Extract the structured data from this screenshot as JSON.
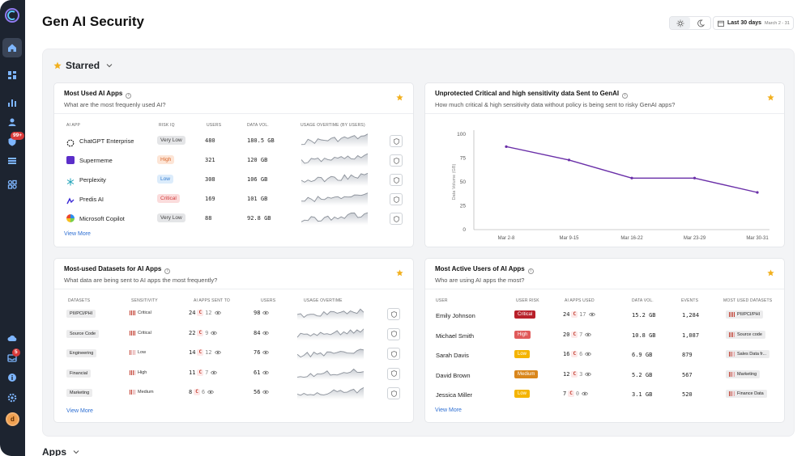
{
  "page": {
    "title": "Gen AI Security"
  },
  "header": {
    "date_range_label": "Last 30 days",
    "date_range_sub": "March 2 - 31"
  },
  "sidebar": {
    "alert_badge": "99+",
    "notif_badge": "5",
    "avatar_initial": "d",
    "items": [
      {
        "icon": "home-icon"
      },
      {
        "icon": "dashboard-icon"
      },
      {
        "icon": "bar-chart-icon"
      },
      {
        "icon": "user-icon"
      },
      {
        "icon": "shield-alert-icon"
      },
      {
        "icon": "list-icon"
      },
      {
        "icon": "integrations-icon"
      },
      {
        "icon": "cloud-icon"
      },
      {
        "icon": "inbox-icon"
      },
      {
        "icon": "info-icon"
      },
      {
        "icon": "settings-icon"
      }
    ]
  },
  "starred": {
    "label": "Starred"
  },
  "apps_section": {
    "label": "Apps"
  },
  "most_used_apps": {
    "title": "Most Used AI Apps",
    "subtitle": "What are the most frequenly used AI?",
    "headers": [
      "AI APP",
      "RISK IQ",
      "USERS",
      "DATA VOL.",
      "USAGE OVERTIME (BY USERS)"
    ],
    "rows": [
      {
        "name": "ChatGPT Enterprise",
        "risk": "Very Low",
        "users": "480",
        "data": "180.5 GB"
      },
      {
        "name": "Supermeme",
        "risk": "High",
        "users": "321",
        "data": "120 GB"
      },
      {
        "name": "Perplexity",
        "risk": "Low",
        "users": "308",
        "data": "106 GB"
      },
      {
        "name": "Predis AI",
        "risk": "Critical",
        "users": "169",
        "data": "101 GB"
      },
      {
        "name": "Microsoft Copilot",
        "risk": "Very Low",
        "users": "88",
        "data": "92.8 GB"
      }
    ],
    "view_more": "View More"
  },
  "unprotected": {
    "title": "Unprotected Critical and high sensitivity data Sent to GenAI",
    "subtitle": "How much critical & high sensitivity data without policy is being sent to risky GenAI apps?",
    "chart_data": {
      "type": "line",
      "categories": [
        "Mar 2-8",
        "Mar 9-15",
        "Mar 16-22",
        "Mar 23-29",
        "Mar 30-31"
      ],
      "values": [
        87,
        73,
        54,
        54,
        39
      ],
      "ylabel": "Data Volume (GB)",
      "yticks": [
        "100",
        "75",
        "50",
        "25",
        "0"
      ],
      "ylim": [
        0,
        100
      ],
      "color": "#6a2fa8"
    }
  },
  "datasets": {
    "title": "Most-used Datasets for AI Apps",
    "subtitle": "What data are being sent to AI apps the most frequently?",
    "headers": [
      "DATASETS",
      "SENSITIVITY",
      "AI APPS SENT TO",
      "USERS",
      "USAGE OVERTIME"
    ],
    "rows": [
      {
        "name": "PII/PCI/PHI",
        "sensitivity": "Critical",
        "apps": "24",
        "crit": "12",
        "users": "98"
      },
      {
        "name": "Source Code",
        "sensitivity": "Critical",
        "apps": "22",
        "crit": "9",
        "users": "84"
      },
      {
        "name": "Engineering",
        "sensitivity": "Low",
        "apps": "14",
        "crit": "12",
        "users": "76"
      },
      {
        "name": "Financial",
        "sensitivity": "High",
        "apps": "11",
        "crit": "7",
        "users": "61"
      },
      {
        "name": "Marketing",
        "sensitivity": "Medium",
        "apps": "8",
        "crit": "6",
        "users": "56"
      }
    ],
    "crit_letter": "C",
    "view_more": "View More"
  },
  "active_users": {
    "title": "Most Active Users of AI Apps",
    "subtitle": "Who are using AI apps the most?",
    "headers": [
      "USER",
      "USER RISK",
      "AI APPS USED",
      "DATA VOL.",
      "EVENTS",
      "MOST USED DATASETS"
    ],
    "rows": [
      {
        "name": "Emily Johnson",
        "risk": "Critical",
        "apps": "24",
        "crit": "17",
        "data": "15.2 GB",
        "events": "1,284",
        "dataset": "PII/PCI/PHI"
      },
      {
        "name": "Michael Smith",
        "risk": "High",
        "apps": "20",
        "crit": "7",
        "data": "10.8 GB",
        "events": "1,087",
        "dataset": "Source code"
      },
      {
        "name": "Sarah Davis",
        "risk": "Low",
        "apps": "16",
        "crit": "6",
        "data": "6.9 GB",
        "events": "879",
        "dataset": "Sales Data fr..."
      },
      {
        "name": "David Brown",
        "risk": "Medium",
        "apps": "12",
        "crit": "3",
        "data": "5.2 GB",
        "events": "567",
        "dataset": "Marketing"
      },
      {
        "name": "Jessica Miller",
        "risk": "Low",
        "apps": "7",
        "crit": "0",
        "data": "3.1 GB",
        "events": "520",
        "dataset": "Finance Data"
      }
    ],
    "crit_letter": "C",
    "view_more": "View More"
  },
  "colors": {
    "risk_very_low_bg": "#e4e5e7",
    "risk_very_low_fg": "#444444",
    "risk_high_bg": "#fde5d6",
    "risk_high_fg": "#d8652b",
    "risk_low_bg": "#dcecfb",
    "risk_low_fg": "#2f7ad0",
    "risk_critical_bg": "#fbdcdc",
    "risk_critical_fg": "#d03a3a",
    "user_critical": "#b8202a",
    "user_high": "#e05a5a",
    "user_low": "#f4b400",
    "user_medium": "#d9861c",
    "accent": "#2e6fd3",
    "star": "#f2b01e"
  }
}
